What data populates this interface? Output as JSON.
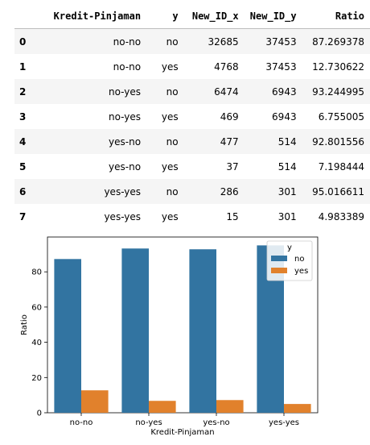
{
  "table": {
    "headers": [
      "",
      "Kredit-Pinjaman",
      "y",
      "New_ID_x",
      "New_ID_y",
      "Ratio"
    ],
    "rows": [
      [
        "0",
        "no-no",
        "no",
        "32685",
        "37453",
        "87.269378"
      ],
      [
        "1",
        "no-no",
        "yes",
        "4768",
        "37453",
        "12.730622"
      ],
      [
        "2",
        "no-yes",
        "no",
        "6474",
        "6943",
        "93.244995"
      ],
      [
        "3",
        "no-yes",
        "yes",
        "469",
        "6943",
        "6.755005"
      ],
      [
        "4",
        "yes-no",
        "no",
        "477",
        "514",
        "92.801556"
      ],
      [
        "5",
        "yes-no",
        "yes",
        "37",
        "514",
        "7.198444"
      ],
      [
        "6",
        "yes-yes",
        "no",
        "286",
        "301",
        "95.016611"
      ],
      [
        "7",
        "yes-yes",
        "yes",
        "15",
        "301",
        "4.983389"
      ]
    ]
  },
  "chart_data": {
    "type": "bar",
    "categories": [
      "no-no",
      "no-yes",
      "yes-no",
      "yes-yes"
    ],
    "series": [
      {
        "name": "no",
        "values": [
          87.269378,
          93.244995,
          92.801556,
          95.016611
        ],
        "color": "#3274a1"
      },
      {
        "name": "yes",
        "values": [
          12.730622,
          6.755005,
          7.198444,
          4.983389
        ],
        "color": "#e1812c"
      }
    ],
    "xlabel": "Kredit-Pinjaman",
    "ylabel": "Ratio",
    "ylim": [
      0,
      99.77
    ],
    "yticks": [
      0,
      20,
      40,
      60,
      80
    ],
    "legend": {
      "title": "y",
      "placement": "top-right"
    },
    "grid": false
  }
}
